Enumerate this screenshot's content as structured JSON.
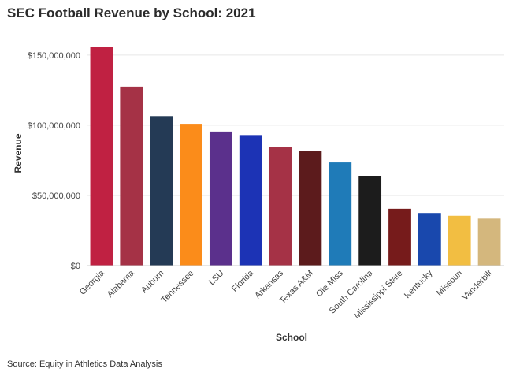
{
  "title": "SEC Football Revenue by School: 2021",
  "source": "Source: Equity in Athletics Data Analysis",
  "chart_data": {
    "type": "bar",
    "title": "SEC Football Revenue by School: 2021",
    "xlabel": "School",
    "ylabel": "Revenue",
    "ylim": [
      0,
      160000000
    ],
    "yticks": [
      0,
      50000000,
      100000000,
      150000000
    ],
    "ytick_labels": [
      "$0",
      "$50,000,000",
      "$100,000,000",
      "$150,000,000"
    ],
    "grid": true,
    "categories": [
      "Georgia",
      "Alabama",
      "Auburn",
      "Tennessee",
      "LSU",
      "Florida",
      "Arkansas",
      "Texas A&M",
      "Ole Miss",
      "South Carolina",
      "Mississippi State",
      "Kentucky",
      "Missouri",
      "Vanderbilt"
    ],
    "values": [
      156000000,
      127500000,
      106500000,
      101000000,
      95500000,
      93000000,
      84500000,
      81500000,
      73500000,
      64000000,
      40500000,
      37500000,
      35500000,
      33500000
    ],
    "colors": [
      "#c02142",
      "#a53246",
      "#243a55",
      "#fb8c1a",
      "#5b308c",
      "#1c33b5",
      "#a53246",
      "#5c1b1c",
      "#1f7bb8",
      "#1c1c1c",
      "#761b1b",
      "#1948ad",
      "#f2be42",
      "#d4b77d"
    ]
  }
}
